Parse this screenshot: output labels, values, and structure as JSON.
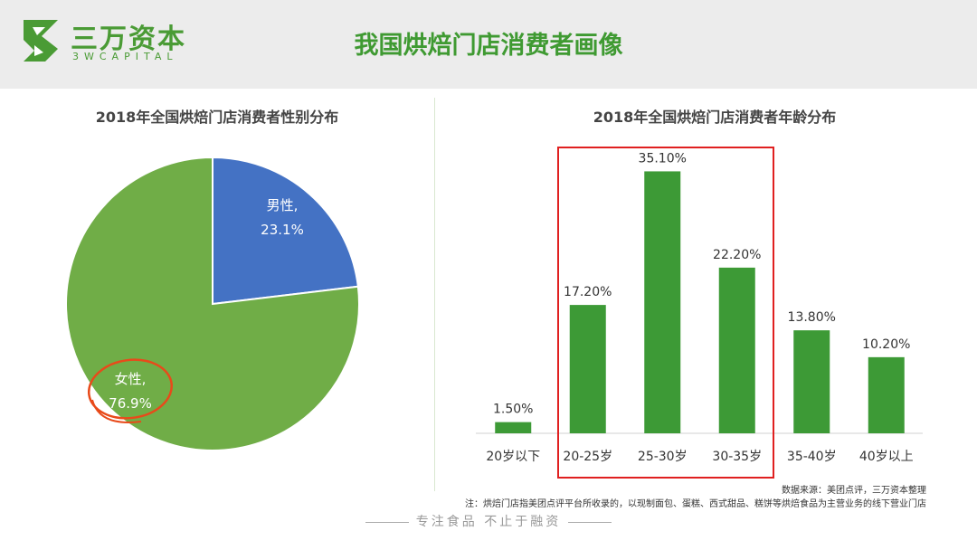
{
  "header": {
    "logo_cn": "三万资本",
    "logo_en": "3WCAPITAL",
    "title": "我国烘焙门店消费者画像"
  },
  "chart_data": [
    {
      "type": "pie",
      "title": "2018年全国烘焙门店消费者性别分布",
      "slices": [
        {
          "name": "男性,",
          "label": "23.1%",
          "value": 23.1,
          "color": "#4472c4"
        },
        {
          "name": "女性,",
          "label": "76.9%",
          "value": 76.9,
          "color": "#70ad47"
        }
      ],
      "annotation": "female slice circled in red"
    },
    {
      "type": "bar",
      "title": "2018年全国烘焙门店消费者年龄分布",
      "categories": [
        "20岁以下",
        "20-25岁",
        "25-30岁",
        "30-35岁",
        "35-40岁",
        "40岁以上"
      ],
      "values": [
        1.5,
        17.2,
        35.1,
        22.2,
        13.8,
        10.2
      ],
      "data_labels": [
        "1.50%",
        "17.20%",
        "35.10%",
        "22.20%",
        "13.80%",
        "10.20%"
      ],
      "ylim": [
        0,
        40
      ],
      "color": "#3d9a36",
      "highlight": {
        "from": "20-25岁",
        "to": "30-35岁",
        "color": "#e02020"
      }
    }
  ],
  "footer": {
    "source": "数据来源：美团点评，三万资本整理",
    "note": "注：烘焙门店指美团点评平台所收录的，以现制面包、蛋糕、西式甜品、糕饼等烘焙食品为主营业务的线下营业门店",
    "slogan": "专注食品   不止于融资"
  }
}
